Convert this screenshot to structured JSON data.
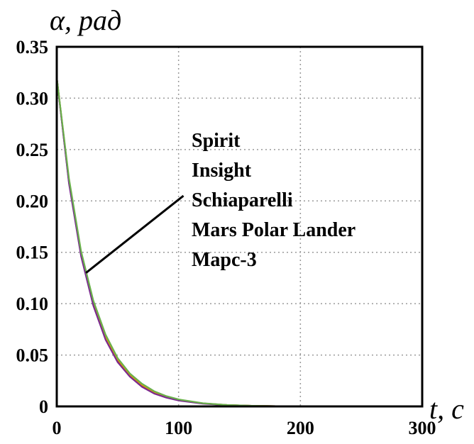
{
  "chart_data": {
    "type": "line",
    "title": "",
    "xlabel": "t, c",
    "ylabel": "α, рад",
    "xlim": [
      0,
      300
    ],
    "ylim": [
      0,
      0.35
    ],
    "xticks": [
      0,
      100,
      200,
      300
    ],
    "xtick_labels": [
      "0",
      "100",
      "200",
      "300"
    ],
    "yticks": [
      0,
      0.05,
      0.1,
      0.15,
      0.2,
      0.25,
      0.3,
      0.35
    ],
    "ytick_labels": [
      "0",
      "0.05",
      "0.10",
      "0.15",
      "0.20",
      "0.25",
      "0.30",
      "0.35"
    ],
    "grid": true,
    "legend_position": "center-right",
    "x": [
      0,
      10,
      20,
      30,
      40,
      50,
      60,
      70,
      80,
      90,
      100,
      120,
      140,
      160,
      180,
      200,
      250,
      300
    ],
    "series": [
      {
        "name": "Spirit",
        "color": "#1f3fbf",
        "values": [
          0.32,
          0.218,
          0.147,
          0.099,
          0.066,
          0.044,
          0.03,
          0.02,
          0.013,
          0.009,
          0.006,
          0.003,
          0.0013,
          0.0006,
          0.0003,
          0.0001,
          0.0,
          0.0
        ]
      },
      {
        "name": "Insight",
        "color": "#c03020",
        "values": [
          0.32,
          0.219,
          0.148,
          0.1,
          0.067,
          0.045,
          0.03,
          0.02,
          0.0135,
          0.009,
          0.006,
          0.003,
          0.0013,
          0.0006,
          0.0003,
          0.0001,
          0.0,
          0.0
        ]
      },
      {
        "name": "Schiaparelli",
        "color": "#e0a000",
        "values": [
          0.32,
          0.22,
          0.149,
          0.101,
          0.068,
          0.046,
          0.031,
          0.021,
          0.014,
          0.0095,
          0.0064,
          0.0029,
          0.0013,
          0.0006,
          0.0003,
          0.0001,
          0.0,
          0.0
        ]
      },
      {
        "name": "Mars Polar Lander",
        "color": "#7b2a8f",
        "values": [
          0.32,
          0.217,
          0.146,
          0.098,
          0.065,
          0.043,
          0.029,
          0.019,
          0.0125,
          0.0085,
          0.0057,
          0.0026,
          0.0012,
          0.0005,
          0.0002,
          0.0001,
          0.0,
          0.0
        ]
      },
      {
        "name": "Марс-3",
        "color": "#6ab04c",
        "values": [
          0.32,
          0.222,
          0.151,
          0.103,
          0.07,
          0.047,
          0.032,
          0.022,
          0.0148,
          0.01,
          0.0068,
          0.0031,
          0.0014,
          0.0006,
          0.0003,
          0.0001,
          0.0,
          0.0
        ]
      }
    ],
    "pointer_line": {
      "from": {
        "x": 24,
        "y": 0.13
      },
      "to": {
        "x": 104,
        "y": 0.205
      }
    }
  }
}
